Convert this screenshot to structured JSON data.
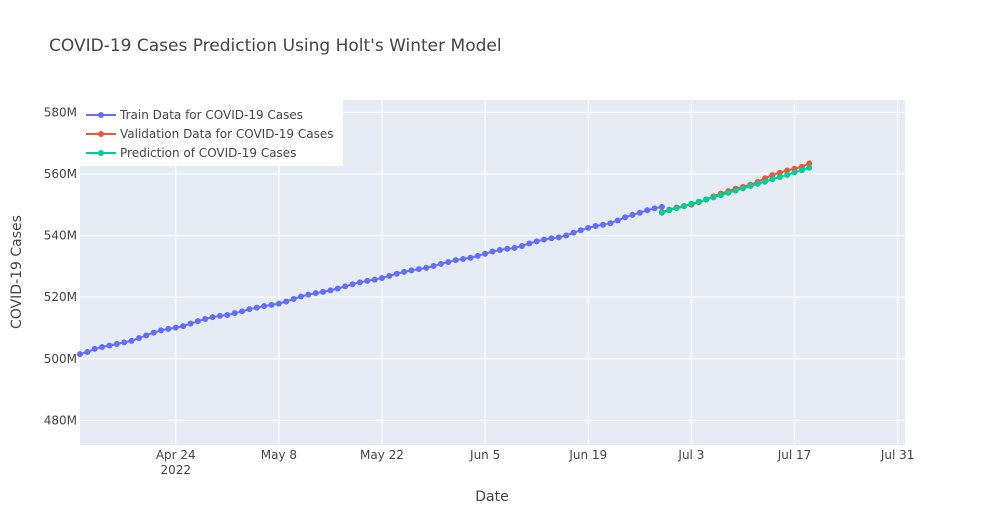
{
  "chart_data": {
    "type": "line",
    "title": "COVID-19 Cases Prediction Using Holt's Winter Model",
    "xlabel": "Date",
    "ylabel": "COVID-19 Cases",
    "xlim": [
      "2022-04-11",
      "2022-08-01"
    ],
    "ylim": [
      472,
      584
    ],
    "x_ticks": [
      {
        "date": "2022-04-24",
        "label": "Apr 24",
        "sublabel": "2022"
      },
      {
        "date": "2022-05-08",
        "label": "May 8",
        "sublabel": ""
      },
      {
        "date": "2022-05-22",
        "label": "May 22",
        "sublabel": ""
      },
      {
        "date": "2022-06-05",
        "label": "Jun 5",
        "sublabel": ""
      },
      {
        "date": "2022-06-19",
        "label": "Jun 19",
        "sublabel": ""
      },
      {
        "date": "2022-07-03",
        "label": "Jul 3",
        "sublabel": ""
      },
      {
        "date": "2022-07-17",
        "label": "Jul 17",
        "sublabel": ""
      },
      {
        "date": "2022-07-31",
        "label": "Jul 31",
        "sublabel": ""
      }
    ],
    "y_ticks": [
      {
        "value": 480,
        "label": "480M"
      },
      {
        "value": 500,
        "label": "500M"
      },
      {
        "value": 520,
        "label": "520M"
      },
      {
        "value": 540,
        "label": "540M"
      },
      {
        "value": 560,
        "label": "560M"
      },
      {
        "value": 580,
        "label": "580M"
      }
    ],
    "grid": true,
    "legend_position": "top-left",
    "series": [
      {
        "name": "Train Data for COVID-19 Cases",
        "color": "#636efa",
        "x": [
          "2022-04-11",
          "2022-04-12",
          "2022-04-13",
          "2022-04-14",
          "2022-04-15",
          "2022-04-16",
          "2022-04-17",
          "2022-04-18",
          "2022-04-19",
          "2022-04-20",
          "2022-04-21",
          "2022-04-22",
          "2022-04-23",
          "2022-04-24",
          "2022-04-25",
          "2022-04-26",
          "2022-04-27",
          "2022-04-28",
          "2022-04-29",
          "2022-04-30",
          "2022-05-01",
          "2022-05-02",
          "2022-05-03",
          "2022-05-04",
          "2022-05-05",
          "2022-05-06",
          "2022-05-07",
          "2022-05-08",
          "2022-05-09",
          "2022-05-10",
          "2022-05-11",
          "2022-05-12",
          "2022-05-13",
          "2022-05-14",
          "2022-05-15",
          "2022-05-16",
          "2022-05-17",
          "2022-05-18",
          "2022-05-19",
          "2022-05-20",
          "2022-05-21",
          "2022-05-22",
          "2022-05-23",
          "2022-05-24",
          "2022-05-25",
          "2022-05-26",
          "2022-05-27",
          "2022-05-28",
          "2022-05-29",
          "2022-05-30",
          "2022-05-31",
          "2022-06-01",
          "2022-06-02",
          "2022-06-03",
          "2022-06-04",
          "2022-06-05",
          "2022-06-06",
          "2022-06-07",
          "2022-06-08",
          "2022-06-09",
          "2022-06-10",
          "2022-06-11",
          "2022-06-12",
          "2022-06-13",
          "2022-06-14",
          "2022-06-15",
          "2022-06-16",
          "2022-06-17",
          "2022-06-18",
          "2022-06-19",
          "2022-06-20",
          "2022-06-21",
          "2022-06-22",
          "2022-06-23",
          "2022-06-24",
          "2022-06-25",
          "2022-06-26",
          "2022-06-27",
          "2022-06-28",
          "2022-06-29"
        ],
        "values": [
          501.5,
          502.2,
          503.2,
          503.8,
          504.3,
          504.8,
          505.3,
          505.8,
          506.7,
          507.6,
          508.5,
          509.2,
          509.7,
          510.1,
          510.6,
          511.4,
          512.2,
          512.9,
          513.5,
          513.9,
          514.2,
          514.8,
          515.4,
          516.1,
          516.6,
          517.1,
          517.5,
          517.9,
          518.6,
          519.4,
          520.2,
          520.8,
          521.3,
          521.7,
          522.2,
          522.8,
          523.5,
          524.2,
          524.8,
          525.3,
          525.7,
          526.2,
          526.9,
          527.6,
          528.2,
          528.7,
          529.1,
          529.5,
          530.1,
          530.8,
          531.4,
          532.0,
          532.4,
          532.8,
          533.4,
          534.1,
          534.8,
          535.3,
          535.7,
          536.0,
          536.6,
          537.4,
          538.1,
          538.7,
          539.1,
          539.4,
          540.0,
          540.9,
          541.7,
          542.5,
          543.1,
          543.5,
          544.0,
          544.9,
          545.9,
          546.7,
          547.4,
          548.2,
          548.8,
          549.3
        ]
      },
      {
        "name": "Validation Data for COVID-19 Cases",
        "color": "#ef553b",
        "x": [
          "2022-06-29",
          "2022-06-30",
          "2022-07-01",
          "2022-07-02",
          "2022-07-03",
          "2022-07-04",
          "2022-07-05",
          "2022-07-06",
          "2022-07-07",
          "2022-07-08",
          "2022-07-09",
          "2022-07-10",
          "2022-07-11",
          "2022-07-12",
          "2022-07-13",
          "2022-07-14",
          "2022-07-15",
          "2022-07-16",
          "2022-07-17",
          "2022-07-18",
          "2022-07-19"
        ],
        "values": [
          547.6,
          548.4,
          549.1,
          549.6,
          550.0,
          550.8,
          551.7,
          552.7,
          553.6,
          554.4,
          555.2,
          555.8,
          556.5,
          557.4,
          558.6,
          559.6,
          560.4,
          561.1,
          561.7,
          562.3,
          563.4
        ]
      },
      {
        "name": "Prediction of COVID-19 Cases",
        "color": "#00cc96",
        "x": [
          "2022-06-29",
          "2022-06-30",
          "2022-07-01",
          "2022-07-02",
          "2022-07-03",
          "2022-07-04",
          "2022-07-05",
          "2022-07-06",
          "2022-07-07",
          "2022-07-08",
          "2022-07-09",
          "2022-07-10",
          "2022-07-11",
          "2022-07-12",
          "2022-07-13",
          "2022-07-14",
          "2022-07-15",
          "2022-07-16",
          "2022-07-17",
          "2022-07-18",
          "2022-07-19"
        ],
        "values": [
          547.4,
          548.2,
          548.9,
          549.5,
          550.3,
          551.0,
          551.7,
          552.4,
          553.1,
          553.9,
          554.6,
          555.3,
          556.1,
          556.8,
          557.5,
          558.3,
          559.0,
          559.7,
          560.5,
          561.2,
          562.0
        ]
      }
    ]
  }
}
